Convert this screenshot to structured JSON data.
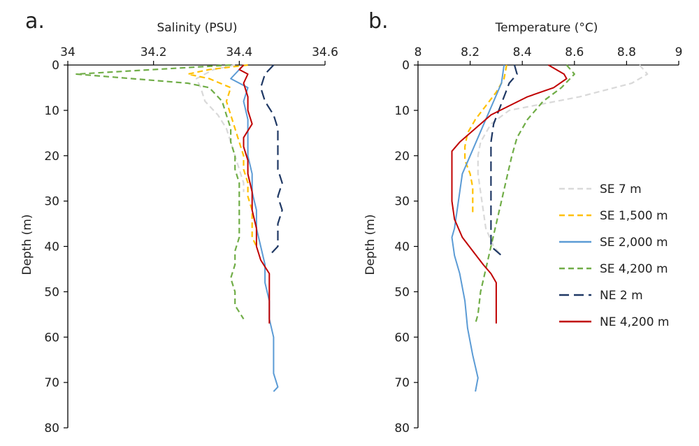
{
  "chart_data": [
    {
      "type": "line",
      "panel_label": "a.",
      "xlabel": "Salinity (PSU)",
      "ylabel": "Depth (m)",
      "xlim": [
        34,
        34.6
      ],
      "ylim": [
        0,
        80
      ],
      "x_axis_position": "top",
      "y_inverted": true,
      "grid": false,
      "x_ticks": [
        "34",
        "34.2",
        "34.4",
        "34.6"
      ],
      "y_ticks": [
        "0",
        "10",
        "20",
        "30",
        "40",
        "50",
        "60",
        "70",
        "80"
      ],
      "series": [
        {
          "name": "SE 7 m",
          "color": "#d9d9d9",
          "dash": "dash",
          "points": [
            [
              34.39,
              0
            ],
            [
              34.34,
              1
            ],
            [
              34.3,
              3
            ],
            [
              34.31,
              5
            ],
            [
              34.32,
              8
            ],
            [
              34.35,
              11
            ],
            [
              34.37,
              14
            ],
            [
              34.38,
              17
            ],
            [
              34.39,
              20
            ],
            [
              34.4,
              23
            ],
            [
              34.41,
              26
            ],
            [
              34.41,
              28
            ]
          ]
        },
        {
          "name": "SE 1,500 m",
          "color": "#ffc000",
          "dash": "dash",
          "points": [
            [
              34.42,
              0
            ],
            [
              34.33,
              1
            ],
            [
              34.28,
              2
            ],
            [
              34.33,
              3
            ],
            [
              34.38,
              5
            ],
            [
              34.37,
              8
            ],
            [
              34.38,
              11
            ],
            [
              34.39,
              14
            ],
            [
              34.4,
              17
            ],
            [
              34.41,
              20
            ],
            [
              34.41,
              23
            ],
            [
              34.42,
              26
            ],
            [
              34.42,
              29
            ],
            [
              34.43,
              32
            ],
            [
              34.43,
              35
            ],
            [
              34.43,
              38
            ],
            [
              34.44,
              40
            ]
          ]
        },
        {
          "name": "SE 2,000 m",
          "color": "#5b9bd5",
          "dash": "solid",
          "points": [
            [
              34.41,
              0
            ],
            [
              34.38,
              3
            ],
            [
              34.42,
              5
            ],
            [
              34.41,
              8
            ],
            [
              34.42,
              12
            ],
            [
              34.42,
              16
            ],
            [
              34.42,
              20
            ],
            [
              34.43,
              24
            ],
            [
              34.43,
              28
            ],
            [
              34.44,
              32
            ],
            [
              34.44,
              36
            ],
            [
              34.45,
              40
            ],
            [
              34.46,
              44
            ],
            [
              34.46,
              48
            ],
            [
              34.47,
              52
            ],
            [
              34.47,
              56
            ],
            [
              34.48,
              60
            ],
            [
              34.48,
              64
            ],
            [
              34.48,
              68
            ],
            [
              34.49,
              71
            ],
            [
              34.48,
              72
            ]
          ]
        },
        {
          "name": "SE 4,200 m",
          "color": "#70ad47",
          "dash": "dash",
          "points": [
            [
              34.38,
              0
            ],
            [
              34.2,
              1
            ],
            [
              34.02,
              2
            ],
            [
              34.15,
              3
            ],
            [
              34.28,
              4
            ],
            [
              34.33,
              5
            ],
            [
              34.36,
              8
            ],
            [
              34.37,
              11
            ],
            [
              34.38,
              14
            ],
            [
              34.38,
              17
            ],
            [
              34.39,
              20
            ],
            [
              34.39,
              23
            ],
            [
              34.4,
              26
            ],
            [
              34.4,
              29
            ],
            [
              34.4,
              32
            ],
            [
              34.4,
              35
            ],
            [
              34.4,
              38
            ],
            [
              34.39,
              41
            ],
            [
              34.39,
              44
            ],
            [
              34.38,
              47
            ],
            [
              34.39,
              50
            ],
            [
              34.39,
              53
            ],
            [
              34.41,
              56
            ]
          ]
        },
        {
          "name": "NE 2 m",
          "color": "#1f3864",
          "dash": "longdash",
          "points": [
            [
              34.48,
              0
            ],
            [
              34.46,
              2
            ],
            [
              34.45,
              5
            ],
            [
              34.46,
              8
            ],
            [
              34.48,
              11
            ],
            [
              34.49,
              14
            ],
            [
              34.49,
              17
            ],
            [
              34.49,
              20
            ],
            [
              34.49,
              23
            ],
            [
              34.5,
              26
            ],
            [
              34.49,
              29
            ],
            [
              34.5,
              32
            ],
            [
              34.49,
              35
            ],
            [
              34.49,
              38
            ],
            [
              34.49,
              40
            ],
            [
              34.47,
              42
            ]
          ]
        },
        {
          "name": "NE 4,200 m",
          "color": "#c00000",
          "dash": "solid",
          "points": [
            [
              34.41,
              0
            ],
            [
              34.4,
              1
            ],
            [
              34.42,
              2
            ],
            [
              34.41,
              4
            ],
            [
              34.42,
              7
            ],
            [
              34.42,
              10
            ],
            [
              34.43,
              13
            ],
            [
              34.41,
              16
            ],
            [
              34.41,
              18
            ],
            [
              34.42,
              21
            ],
            [
              34.42,
              24
            ],
            [
              34.43,
              28
            ],
            [
              34.43,
              32
            ],
            [
              34.44,
              36
            ],
            [
              34.44,
              40
            ],
            [
              34.45,
              43
            ],
            [
              34.47,
              46
            ],
            [
              34.47,
              49
            ],
            [
              34.47,
              52
            ],
            [
              34.47,
              55
            ],
            [
              34.47,
              57
            ]
          ]
        }
      ]
    },
    {
      "type": "line",
      "panel_label": "b.",
      "xlabel": "Temperature (°C)",
      "ylabel": "Depth (m)",
      "xlim": [
        8,
        9
      ],
      "ylim": [
        0,
        80
      ],
      "x_axis_position": "top",
      "y_inverted": true,
      "grid": false,
      "legend_position": "right",
      "x_ticks": [
        "8",
        "8.2",
        "8.4",
        "8.6",
        "8.8",
        "9"
      ],
      "y_ticks": [
        "0",
        "10",
        "20",
        "30",
        "40",
        "50",
        "60",
        "70",
        "80"
      ],
      "series": [
        {
          "name": "SE 7 m",
          "color": "#d9d9d9",
          "dash": "dash",
          "points": [
            [
              8.85,
              0
            ],
            [
              8.88,
              2
            ],
            [
              8.82,
              4
            ],
            [
              8.62,
              7
            ],
            [
              8.35,
              10
            ],
            [
              8.28,
              13
            ],
            [
              8.24,
              17
            ],
            [
              8.23,
              20
            ],
            [
              8.23,
              24
            ],
            [
              8.24,
              28
            ],
            [
              8.25,
              32
            ],
            [
              8.26,
              36
            ],
            [
              8.29,
              40
            ],
            [
              8.32,
              42
            ]
          ]
        },
        {
          "name": "SE 1,500 m",
          "color": "#ffc000",
          "dash": "dash",
          "points": [
            [
              8.34,
              0
            ],
            [
              8.33,
              3
            ],
            [
              8.3,
              6
            ],
            [
              8.26,
              9
            ],
            [
              8.22,
              12
            ],
            [
              8.19,
              15
            ],
            [
              8.18,
              18
            ],
            [
              8.18,
              21
            ],
            [
              8.2,
              24
            ],
            [
              8.21,
              27
            ],
            [
              8.21,
              30
            ],
            [
              8.21,
              33
            ]
          ]
        },
        {
          "name": "SE 2,000 m",
          "color": "#5b9bd5",
          "dash": "solid",
          "points": [
            [
              8.33,
              0
            ],
            [
              8.32,
              4
            ],
            [
              8.29,
              8
            ],
            [
              8.26,
              12
            ],
            [
              8.23,
              16
            ],
            [
              8.2,
              20
            ],
            [
              8.17,
              24
            ],
            [
              8.16,
              28
            ],
            [
              8.15,
              32
            ],
            [
              8.14,
              36
            ],
            [
              8.13,
              38
            ],
            [
              8.14,
              42
            ],
            [
              8.16,
              46
            ],
            [
              8.18,
              52
            ],
            [
              8.19,
              58
            ],
            [
              8.21,
              64
            ],
            [
              8.23,
              69
            ],
            [
              8.22,
              72
            ]
          ]
        },
        {
          "name": "SE 4,200 m",
          "color": "#70ad47",
          "dash": "dash",
          "points": [
            [
              8.57,
              0
            ],
            [
              8.6,
              2
            ],
            [
              8.55,
              5
            ],
            [
              8.48,
              8
            ],
            [
              8.42,
              12
            ],
            [
              8.38,
              16
            ],
            [
              8.36,
              20
            ],
            [
              8.34,
              25
            ],
            [
              8.32,
              30
            ],
            [
              8.3,
              35
            ],
            [
              8.28,
              40
            ],
            [
              8.26,
              45
            ],
            [
              8.24,
              50
            ],
            [
              8.23,
              55
            ],
            [
              8.22,
              57
            ]
          ]
        },
        {
          "name": "NE 2 m",
          "color": "#1f3864",
          "dash": "longdash",
          "points": [
            [
              8.37,
              0
            ],
            [
              8.38,
              2
            ],
            [
              8.35,
              4
            ],
            [
              8.33,
              7
            ],
            [
              8.31,
              10
            ],
            [
              8.29,
              13
            ],
            [
              8.28,
              17
            ],
            [
              8.28,
              20
            ],
            [
              8.28,
              25
            ],
            [
              8.28,
              30
            ],
            [
              8.28,
              35
            ],
            [
              8.28,
              40
            ],
            [
              8.32,
              42
            ]
          ]
        },
        {
          "name": "NE 4,200 m",
          "color": "#c00000",
          "dash": "solid",
          "points": [
            [
              8.5,
              0
            ],
            [
              8.53,
              1
            ],
            [
              8.56,
              2
            ],
            [
              8.57,
              3
            ],
            [
              8.52,
              5
            ],
            [
              8.42,
              7
            ],
            [
              8.35,
              9
            ],
            [
              8.28,
              11
            ],
            [
              8.22,
              14
            ],
            [
              8.16,
              17
            ],
            [
              8.13,
              19
            ],
            [
              8.13,
              22
            ],
            [
              8.13,
              26
            ],
            [
              8.13,
              30
            ],
            [
              8.14,
              34
            ],
            [
              8.17,
              38
            ],
            [
              8.21,
              41
            ],
            [
              8.25,
              44
            ],
            [
              8.28,
              46
            ],
            [
              8.3,
              48
            ],
            [
              8.3,
              52
            ],
            [
              8.3,
              57
            ]
          ]
        }
      ]
    }
  ]
}
